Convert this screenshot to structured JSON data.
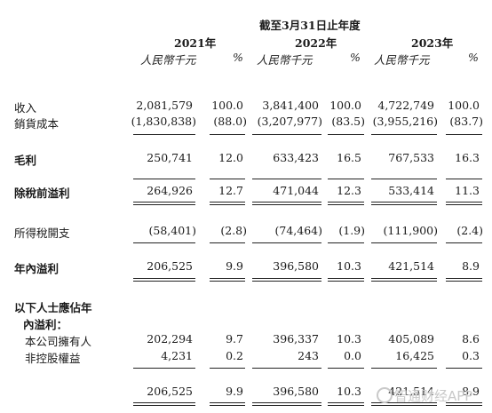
{
  "header": {
    "period": "截至3月31日止年度",
    "years": [
      "2021年",
      "2022年",
      "2023年"
    ],
    "unit_amount": "人民幣千元",
    "unit_pct": "%"
  },
  "rows": [
    {
      "label": "收入",
      "bold": false,
      "values": [
        "2,081,579",
        "100.0",
        "3,841,400",
        "100.0",
        "4,722,749",
        "100.0"
      ]
    },
    {
      "label": "銷貨成本",
      "bold": false,
      "values": [
        "(1,830,838)",
        "(88.0)",
        "(3,207,977)",
        "(83.5)",
        "(3,955,216)",
        "(83.7)"
      ]
    },
    {
      "label": "毛利",
      "bold": true,
      "values": [
        "250,741",
        "12.0",
        "633,423",
        "16.5",
        "767,533",
        "16.3"
      ]
    },
    {
      "label": "除稅前溢利",
      "bold": true,
      "values": [
        "264,926",
        "12.7",
        "471,044",
        "12.3",
        "533,414",
        "11.3"
      ]
    },
    {
      "label": "所得稅開支",
      "bold": false,
      "values": [
        "(58,401)",
        "(2.8)",
        "(74,464)",
        "(1.9)",
        "(111,900)",
        "(2.4)"
      ]
    },
    {
      "label": "年內溢利",
      "bold": true,
      "values": [
        "206,525",
        "9.9",
        "396,580",
        "10.3",
        "421,514",
        "8.9"
      ]
    },
    {
      "label": "本公司擁有人",
      "bold": false,
      "values": [
        "202,294",
        "9.7",
        "396,337",
        "10.3",
        "405,089",
        "8.6"
      ]
    },
    {
      "label": "非控股權益",
      "bold": false,
      "values": [
        "4,231",
        "0.2",
        "243",
        "0.0",
        "16,425",
        "0.3"
      ]
    },
    {
      "label": "",
      "bold": false,
      "values": [
        "206,525",
        "9.9",
        "396,580",
        "10.3",
        "421,514",
        "8.9"
      ]
    }
  ],
  "section_label": {
    "line1": "以下人士應佔年",
    "line2": "內溢利："
  },
  "watermark": "智通财经APP"
}
